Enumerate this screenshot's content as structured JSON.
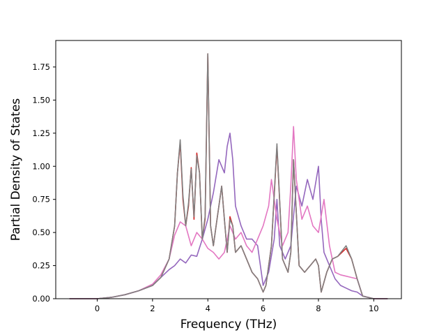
{
  "chart_data": {
    "type": "line",
    "title": "",
    "xlabel": "Frequency (THz)",
    "ylabel": "Partial Density of States",
    "xlim": [
      -1.5,
      11.0
    ],
    "ylim": [
      0.0,
      1.95
    ],
    "xticks": [
      0,
      2,
      4,
      6,
      8,
      10
    ],
    "yticks": [
      0.0,
      0.25,
      0.5,
      0.75,
      1.0,
      1.25,
      1.5,
      1.75
    ],
    "xtick_labels": [
      "0",
      "2",
      "4",
      "6",
      "8",
      "10"
    ],
    "ytick_labels": [
      "0.00",
      "0.25",
      "0.50",
      "0.75",
      "1.00",
      "1.25",
      "1.50",
      "1.75"
    ],
    "grid": false,
    "legend": "none",
    "series": [
      {
        "color": "#d62728",
        "x": [
          -1.0,
          0.0,
          0.5,
          1.0,
          1.5,
          2.0,
          2.3,
          2.6,
          2.8,
          2.9,
          3.0,
          3.1,
          3.2,
          3.3,
          3.4,
          3.5,
          3.6,
          3.7,
          3.8,
          3.9,
          4.0,
          4.1,
          4.2,
          4.3,
          4.4,
          4.5,
          4.6,
          4.7,
          4.8,
          4.9,
          5.0,
          5.2,
          5.4,
          5.6,
          5.8,
          6.0,
          6.1,
          6.3,
          6.5,
          6.7,
          6.9,
          7.0,
          7.1,
          7.3,
          7.5,
          7.7,
          7.9,
          8.0,
          8.1,
          8.3,
          8.5,
          8.7,
          9.0,
          9.2,
          9.4,
          9.6,
          10.0,
          10.5
        ],
        "values": [
          0.0,
          0.0,
          0.01,
          0.03,
          0.06,
          0.1,
          0.16,
          0.3,
          0.55,
          0.95,
          1.18,
          0.75,
          0.55,
          0.7,
          0.99,
          0.6,
          1.1,
          0.95,
          0.45,
          0.6,
          1.85,
          0.55,
          0.4,
          0.55,
          0.7,
          0.85,
          0.6,
          0.35,
          0.62,
          0.55,
          0.35,
          0.4,
          0.3,
          0.2,
          0.15,
          0.05,
          0.1,
          0.4,
          1.15,
          0.3,
          0.2,
          0.35,
          1.05,
          0.25,
          0.2,
          0.25,
          0.3,
          0.25,
          0.05,
          0.2,
          0.3,
          0.32,
          0.38,
          0.3,
          0.15,
          0.02,
          0.0,
          0.0
        ]
      },
      {
        "color": "#9467bd",
        "x": [
          -1.0,
          0.0,
          0.5,
          1.0,
          1.5,
          2.0,
          2.3,
          2.6,
          2.8,
          3.0,
          3.2,
          3.4,
          3.6,
          3.8,
          4.0,
          4.2,
          4.4,
          4.5,
          4.6,
          4.7,
          4.8,
          4.9,
          5.0,
          5.2,
          5.4,
          5.6,
          5.8,
          6.0,
          6.2,
          6.4,
          6.5,
          6.6,
          6.8,
          7.0,
          7.2,
          7.4,
          7.6,
          7.8,
          8.0,
          8.1,
          8.2,
          8.4,
          8.6,
          8.8,
          9.0,
          9.2,
          9.4,
          9.6,
          10.0,
          10.5
        ],
        "values": [
          0.0,
          0.0,
          0.01,
          0.03,
          0.06,
          0.1,
          0.16,
          0.22,
          0.25,
          0.3,
          0.27,
          0.33,
          0.32,
          0.45,
          0.6,
          0.8,
          1.05,
          1.0,
          0.95,
          1.15,
          1.25,
          1.05,
          0.7,
          0.55,
          0.45,
          0.45,
          0.4,
          0.1,
          0.2,
          0.45,
          0.75,
          0.4,
          0.3,
          0.4,
          0.85,
          0.7,
          0.9,
          0.75,
          1.0,
          0.6,
          0.35,
          0.25,
          0.15,
          0.1,
          0.08,
          0.06,
          0.05,
          0.02,
          0.0,
          0.0
        ]
      },
      {
        "color": "#e377c2",
        "x": [
          -1.0,
          0.0,
          0.5,
          1.0,
          1.5,
          2.0,
          2.3,
          2.6,
          2.8,
          3.0,
          3.2,
          3.4,
          3.6,
          3.8,
          4.0,
          4.2,
          4.4,
          4.6,
          4.8,
          5.0,
          5.2,
          5.4,
          5.6,
          5.8,
          6.0,
          6.2,
          6.3,
          6.4,
          6.5,
          6.6,
          6.7,
          6.8,
          6.9,
          7.0,
          7.1,
          7.2,
          7.4,
          7.6,
          7.8,
          8.0,
          8.2,
          8.4,
          8.6,
          8.8,
          9.0,
          9.2,
          9.4,
          9.6,
          10.0,
          10.5
        ],
        "values": [
          0.0,
          0.0,
          0.01,
          0.03,
          0.06,
          0.11,
          0.18,
          0.3,
          0.48,
          0.58,
          0.55,
          0.4,
          0.5,
          0.45,
          0.38,
          0.35,
          0.3,
          0.35,
          0.55,
          0.45,
          0.5,
          0.4,
          0.35,
          0.45,
          0.55,
          0.7,
          0.9,
          0.75,
          0.6,
          0.5,
          0.4,
          0.45,
          0.5,
          0.85,
          1.3,
          0.9,
          0.6,
          0.7,
          0.55,
          0.5,
          0.75,
          0.4,
          0.2,
          0.18,
          0.17,
          0.16,
          0.15,
          0.02,
          0.0,
          0.0
        ]
      },
      {
        "color": "#7f7f7f",
        "x": [
          -1.0,
          0.0,
          0.5,
          1.0,
          1.5,
          2.0,
          2.3,
          2.6,
          2.8,
          2.9,
          3.0,
          3.1,
          3.2,
          3.3,
          3.4,
          3.5,
          3.6,
          3.7,
          3.8,
          3.9,
          4.0,
          4.1,
          4.2,
          4.3,
          4.4,
          4.5,
          4.6,
          4.7,
          4.8,
          4.9,
          5.0,
          5.2,
          5.4,
          5.6,
          5.8,
          6.0,
          6.1,
          6.3,
          6.5,
          6.7,
          6.9,
          7.0,
          7.1,
          7.3,
          7.5,
          7.7,
          7.9,
          8.0,
          8.1,
          8.3,
          8.5,
          8.7,
          9.0,
          9.2,
          9.4,
          9.6,
          10.0,
          10.5
        ],
        "values": [
          0.0,
          0.0,
          0.01,
          0.03,
          0.06,
          0.1,
          0.16,
          0.3,
          0.55,
          0.95,
          1.2,
          0.78,
          0.55,
          0.72,
          0.98,
          0.62,
          1.08,
          0.95,
          0.45,
          0.62,
          1.85,
          0.55,
          0.4,
          0.55,
          0.7,
          0.85,
          0.6,
          0.35,
          0.6,
          0.55,
          0.35,
          0.4,
          0.3,
          0.2,
          0.15,
          0.05,
          0.1,
          0.4,
          1.17,
          0.3,
          0.2,
          0.35,
          1.05,
          0.25,
          0.2,
          0.25,
          0.3,
          0.25,
          0.05,
          0.2,
          0.3,
          0.32,
          0.4,
          0.3,
          0.15,
          0.02,
          0.0,
          0.0
        ]
      }
    ]
  }
}
